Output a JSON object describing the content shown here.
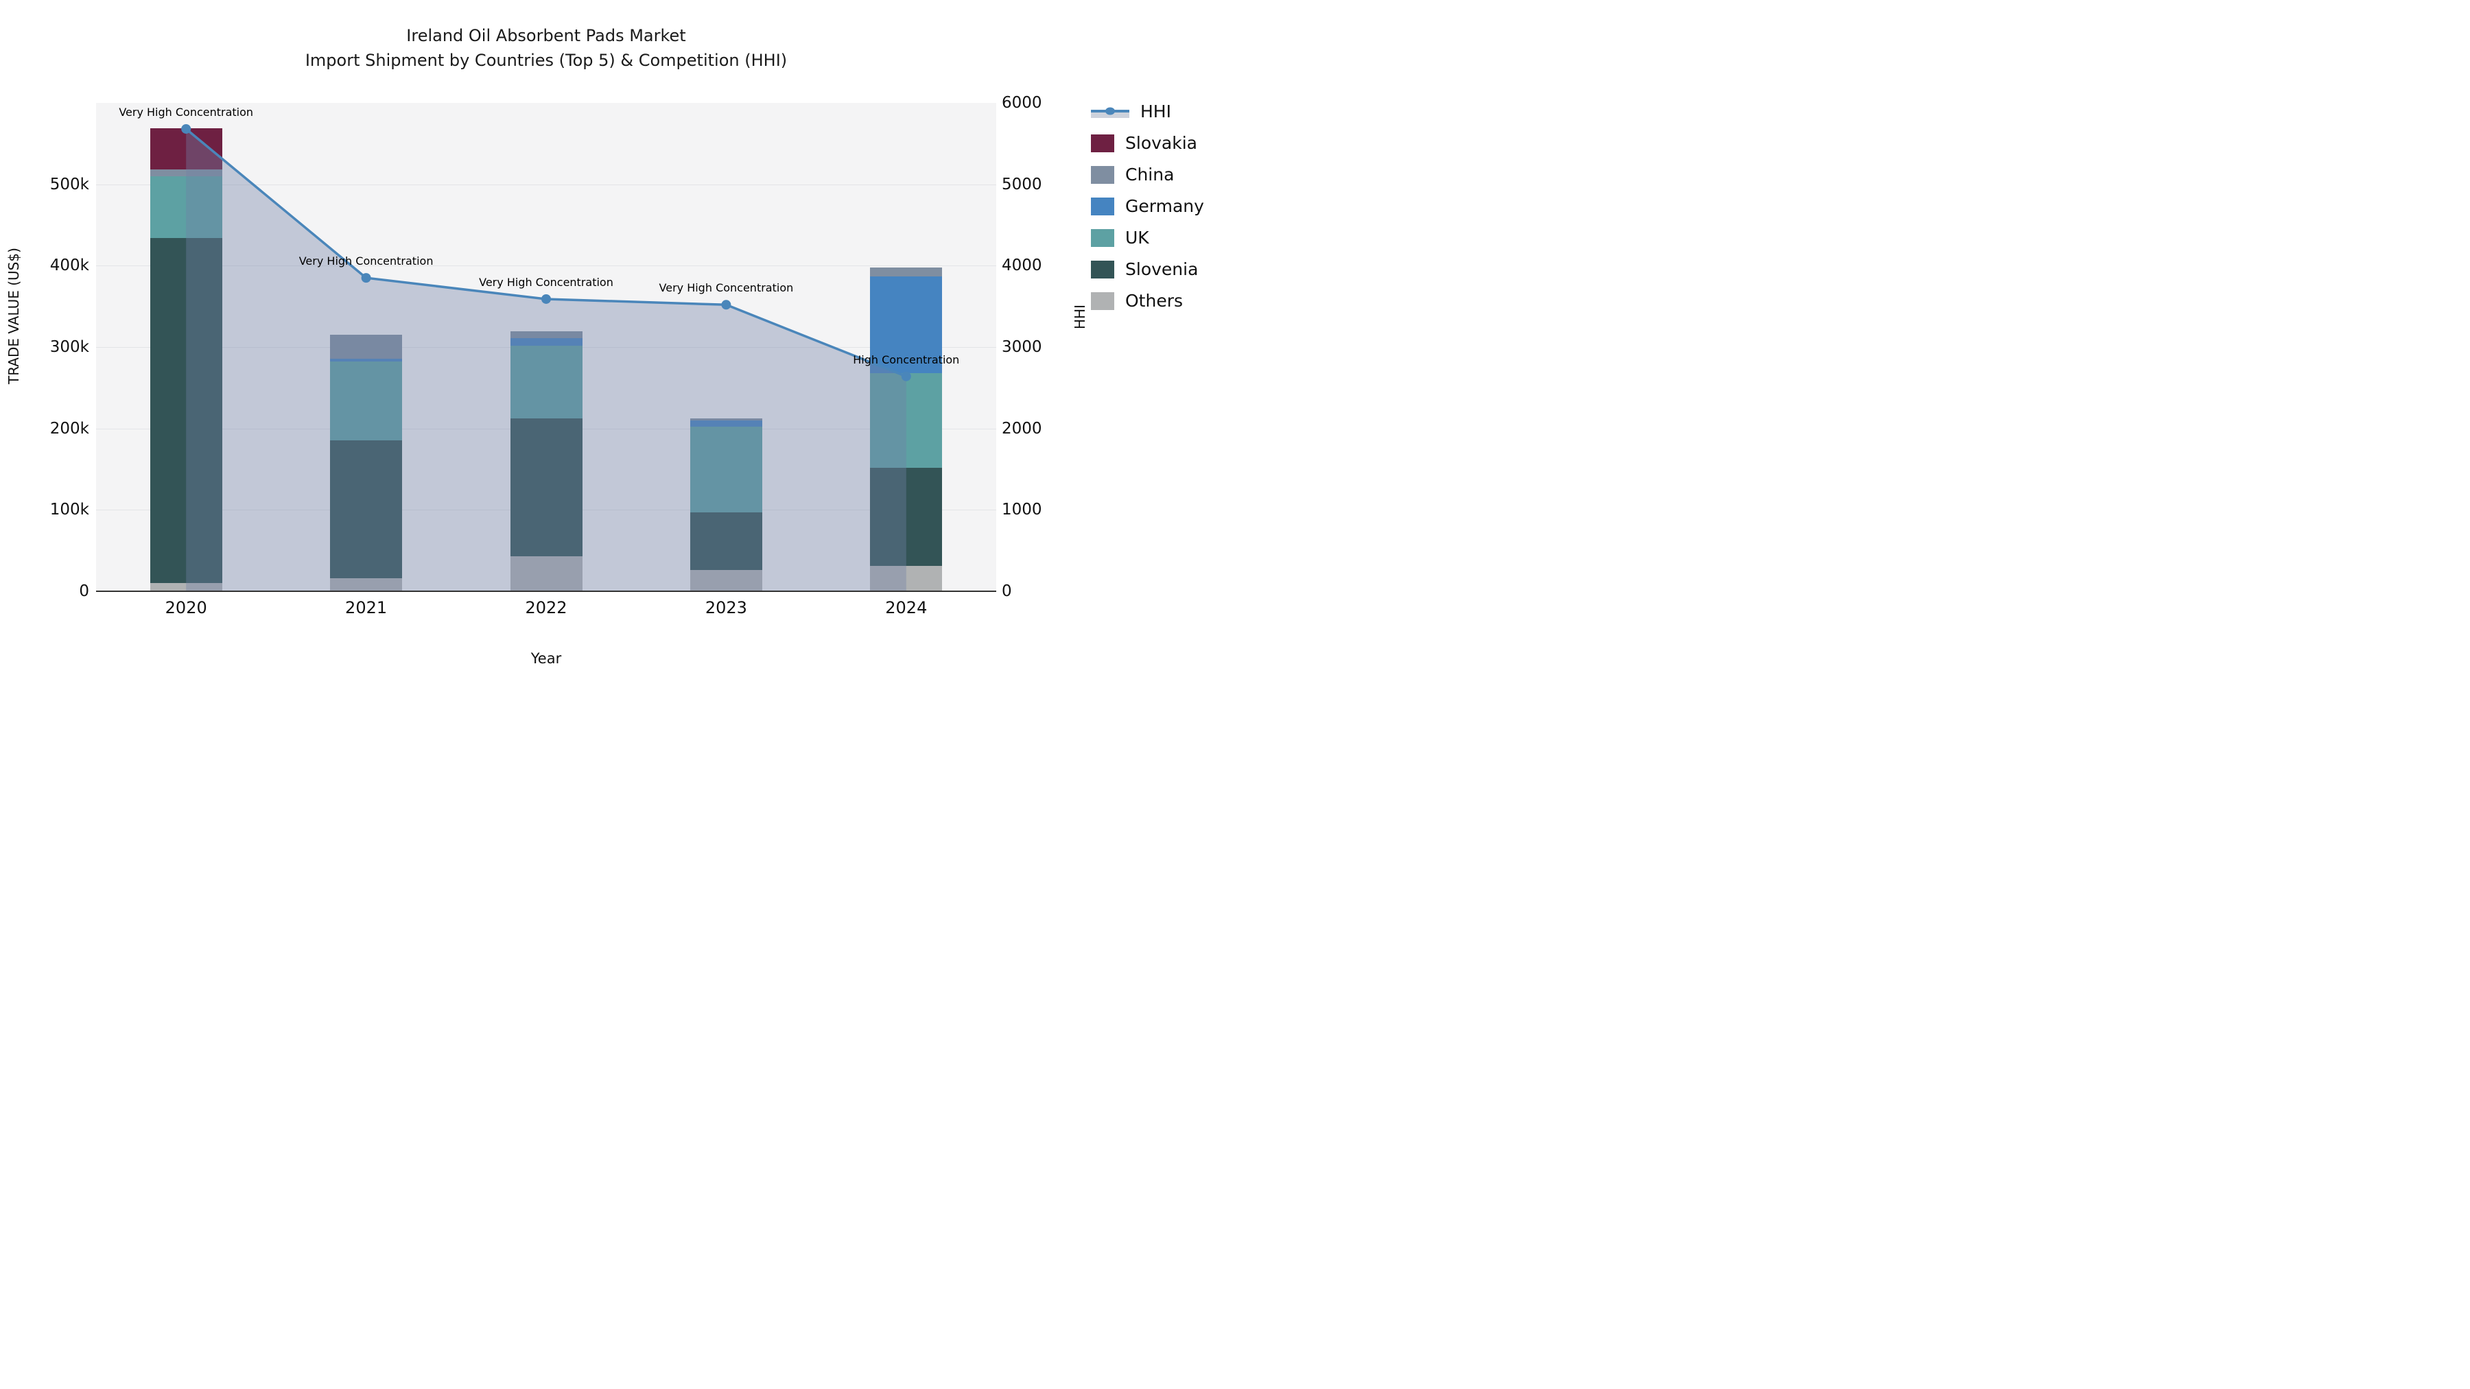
{
  "title": {
    "line1": "Ireland Oil Absorbent Pads Market",
    "line2": "Import Shipment by Countries (Top 5) & Competition (HHI)"
  },
  "axes": {
    "x_title": "Year",
    "y_left_title": "TRADE VALUE (US$)",
    "y_right_title": "HHI",
    "y_left_ticks": [
      "0",
      "100k",
      "200k",
      "300k",
      "400k",
      "500k"
    ],
    "y_right_ticks": [
      "0",
      "1000",
      "2000",
      "3000",
      "4000",
      "5000",
      "6000"
    ],
    "x_ticks": [
      "2020",
      "2021",
      "2022",
      "2023",
      "2024"
    ]
  },
  "legend": {
    "items": [
      {
        "label": "HHI",
        "type": "line",
        "color": "#4a86ba"
      },
      {
        "label": "Slovakia",
        "type": "patch",
        "color": "#6e2042"
      },
      {
        "label": "China",
        "type": "patch",
        "color": "#7f8ea1"
      },
      {
        "label": "Germany",
        "type": "patch",
        "color": "#4584c1"
      },
      {
        "label": "UK",
        "type": "patch",
        "color": "#5da1a3"
      },
      {
        "label": "Slovenia",
        "type": "patch",
        "color": "#335456"
      },
      {
        "label": "Others",
        "type": "patch",
        "color": "#b0b2b3"
      }
    ]
  },
  "chart_data": {
    "type": "bar",
    "subtype": "stacked-bars-with-line",
    "title": "Ireland Oil Absorbent Pads Market — Import Shipment by Countries (Top 5) & Competition (HHI)",
    "xlabel": "Year",
    "ylabel_left": "TRADE VALUE (US$)",
    "ylabel_right": "HHI",
    "categories": [
      "2020",
      "2021",
      "2022",
      "2023",
      "2024"
    ],
    "value_unit": "thousand US$",
    "series": [
      {
        "name": "Others",
        "color": "#b0b2b3",
        "values": [
          10,
          16,
          43,
          26,
          31
        ]
      },
      {
        "name": "Slovenia",
        "color": "#335456",
        "values": [
          424,
          169,
          169,
          71,
          121
        ]
      },
      {
        "name": "UK",
        "color": "#5da1a3",
        "values": [
          76,
          97,
          90,
          105,
          116
        ]
      },
      {
        "name": "Germany",
        "color": "#4584c1",
        "values": [
          0,
          4,
          9,
          8,
          119
        ]
      },
      {
        "name": "China",
        "color": "#7f8ea1",
        "values": [
          8,
          29,
          8,
          2,
          11
        ]
      },
      {
        "name": "Slovakia",
        "color": "#6e2042",
        "values": [
          51,
          0,
          0,
          0,
          0
        ]
      }
    ],
    "totals": [
      569,
      315,
      319,
      212,
      398
    ],
    "line_series": {
      "name": "HHI",
      "color": "#4a86ba",
      "area_fill": "rgba(113,130,165,0.38)",
      "values": [
        5680,
        3850,
        3590,
        3520,
        2640
      ]
    },
    "annotations": [
      {
        "x": "2020",
        "text": "Very High Concentration"
      },
      {
        "x": "2021",
        "text": "Very High Concentration"
      },
      {
        "x": "2022",
        "text": "Very High Concentration"
      },
      {
        "x": "2023",
        "text": "Very High Concentration"
      },
      {
        "x": "2024",
        "text": "High Concentration"
      }
    ],
    "ylim_left_thousands": [
      0,
      600
    ],
    "ylim_right": [
      0,
      6000
    ],
    "grid": true,
    "legend_position": "right",
    "plot_bg": "#f4f4f5",
    "grid_color": "#e3e4e7",
    "baseline_color": "#333333"
  },
  "layout_note": ""
}
